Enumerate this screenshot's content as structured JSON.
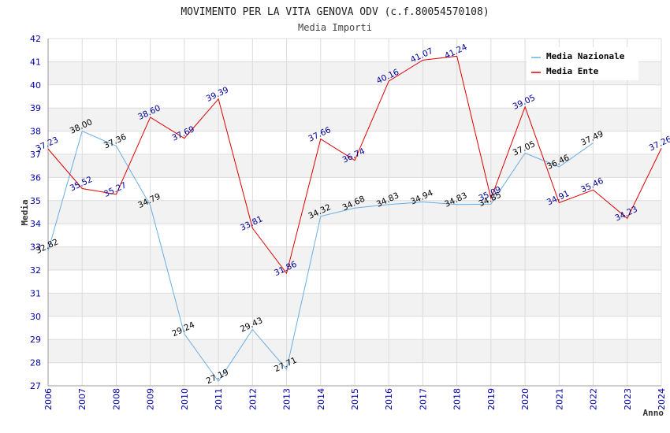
{
  "chart_data": {
    "type": "line",
    "title": "MOVIMENTO PER LA VITA GENOVA ODV (c.f.80054570108)",
    "subtitle": "Media Importi",
    "xlabel": "Anno",
    "ylabel": "Media",
    "ylim": [
      27,
      42
    ],
    "yticks": [
      27,
      28,
      29,
      30,
      31,
      32,
      33,
      34,
      35,
      36,
      37,
      38,
      39,
      40,
      41,
      42
    ],
    "categories": [
      "2006",
      "2007",
      "2008",
      "2009",
      "2010",
      "2011",
      "2012",
      "2013",
      "2014",
      "2015",
      "2016",
      "2017",
      "2018",
      "2019",
      "2020",
      "2021",
      "2022",
      "2023",
      "2024"
    ],
    "legend_position": "top-right",
    "grid": true,
    "series": [
      {
        "name": "Media Nazionale",
        "color": "#6aaee6",
        "values": [
          32.82,
          38.0,
          37.36,
          34.79,
          29.24,
          27.19,
          29.43,
          27.71,
          34.32,
          34.68,
          34.83,
          34.94,
          34.83,
          34.85,
          37.05,
          36.46,
          37.49,
          null,
          null
        ],
        "labels": [
          "32.82",
          "38.00",
          "37.36",
          "34.79",
          "29.24",
          "27.19",
          "29.43",
          "27.71",
          "34.32",
          "34.68",
          "34.83",
          "34.94",
          "34.83",
          "34.85",
          "37.05",
          "36.46",
          "37.49",
          null,
          null
        ]
      },
      {
        "name": "Media Ente",
        "color": "#e00000",
        "values": [
          37.23,
          35.52,
          35.27,
          38.6,
          37.69,
          39.39,
          33.81,
          31.86,
          37.66,
          36.74,
          40.16,
          41.07,
          41.24,
          35.09,
          39.05,
          34.91,
          35.46,
          34.23,
          37.26
        ],
        "labels": [
          "37.23",
          "35.52",
          "35.27",
          "38.60",
          "37.69",
          "39.39",
          "33.81",
          "31.86",
          "37.66",
          "36.74",
          "40.16",
          "41.07",
          "41.24",
          "35.09",
          "39.05",
          "34.91",
          "35.46",
          "34.23",
          "37.26"
        ]
      }
    ]
  }
}
